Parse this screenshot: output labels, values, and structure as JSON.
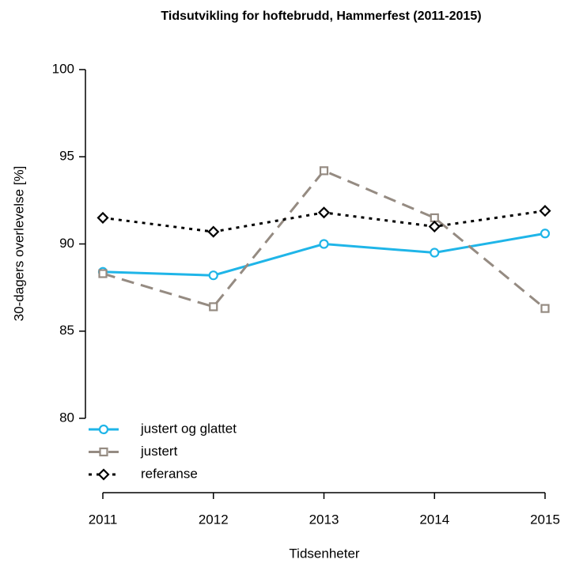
{
  "chart_data": {
    "type": "line",
    "title": "Tidsutvikling for hoftebrudd, Hammerfest (2011-2015)",
    "x_label": "Tidsenheter",
    "y_label": "30-dagers overlevelse [%]",
    "x": [
      2011,
      2012,
      2013,
      2014,
      2015
    ],
    "xlim": [
      2011,
      2015
    ],
    "xticks": [
      2011,
      2012,
      2013,
      2014,
      2015
    ],
    "ylim": [
      80,
      100
    ],
    "yticks": [
      80,
      85,
      90,
      95,
      100
    ],
    "legend": "bottom-left",
    "series": [
      {
        "name": "justert og glattet",
        "color": "#1fb5e8",
        "marker": "circle",
        "dash": "solid",
        "values": [
          88.4,
          88.2,
          90.0,
          89.5,
          90.6
        ]
      },
      {
        "name": "justert",
        "color": "#958b82",
        "marker": "square",
        "dash": "dashed",
        "values": [
          88.3,
          86.4,
          94.2,
          91.5,
          86.3
        ]
      },
      {
        "name": "referanse",
        "color": "#000000",
        "marker": "diamond",
        "dash": "dotted",
        "values": [
          91.5,
          90.7,
          91.8,
          91.0,
          91.9
        ]
      }
    ]
  }
}
